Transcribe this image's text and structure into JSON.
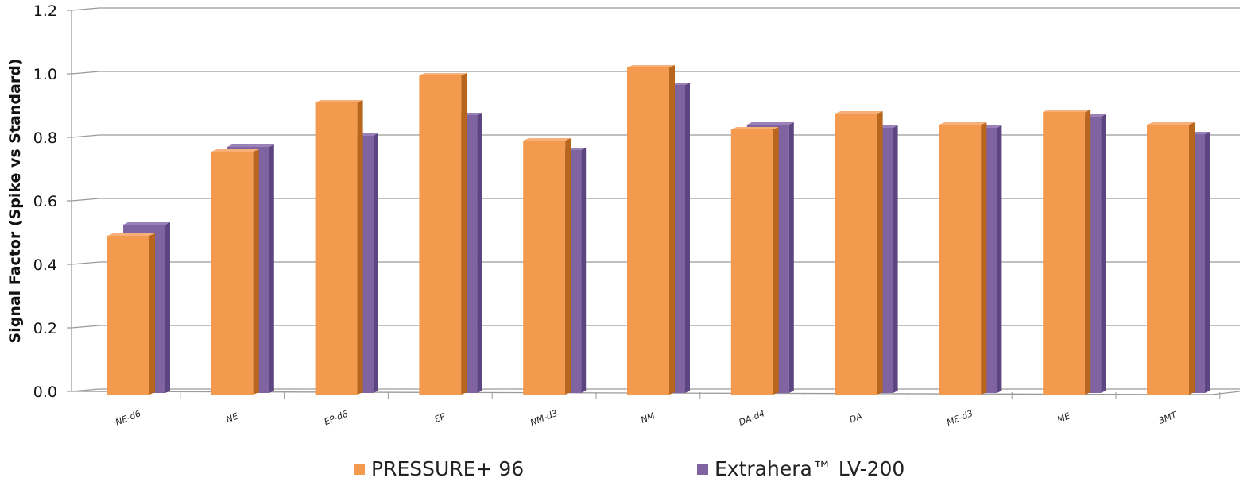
{
  "chart_data": {
    "type": "bar",
    "title": "",
    "xlabel": "",
    "ylabel": "Signal Factor (Spike vs Standard)",
    "ylim": [
      0,
      1.2
    ],
    "yticks": [
      "0.0",
      "0.2",
      "0.4",
      "0.6",
      "0.8",
      "1.0",
      "1.2"
    ],
    "grid": true,
    "legend_placement": "bottom",
    "categories": [
      "NE-d6",
      "NE",
      "EP-d6",
      "EP",
      "NM-d3",
      "NM",
      "DA-d4",
      "DA",
      "ME-d3",
      "ME",
      "3MT"
    ],
    "series": [
      {
        "name": "PRESSURE+ 96",
        "color": "#F39A4F",
        "values": [
          0.49,
          0.755,
          0.91,
          0.995,
          0.79,
          1.02,
          0.825,
          0.875,
          0.84,
          0.88,
          0.84
        ]
      },
      {
        "name": "Extrahera™ LV-200",
        "color": "#8064A2",
        "values": [
          0.525,
          0.77,
          0.805,
          0.87,
          0.76,
          0.965,
          0.84,
          0.83,
          0.83,
          0.865,
          0.81
        ]
      }
    ]
  }
}
